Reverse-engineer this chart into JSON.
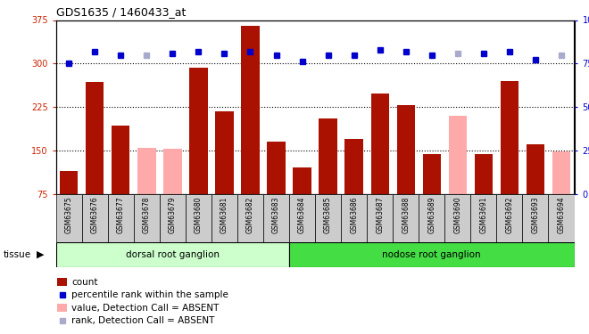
{
  "title": "GDS1635 / 1460433_at",
  "samples": [
    "GSM63675",
    "GSM63676",
    "GSM63677",
    "GSM63678",
    "GSM63679",
    "GSM63680",
    "GSM63681",
    "GSM63682",
    "GSM63683",
    "GSM63684",
    "GSM63685",
    "GSM63686",
    "GSM63687",
    "GSM63688",
    "GSM63689",
    "GSM63690",
    "GSM63691",
    "GSM63692",
    "GSM63693",
    "GSM63694"
  ],
  "bar_values": [
    115,
    268,
    193,
    null,
    null,
    292,
    218,
    365,
    165,
    120,
    205,
    170,
    248,
    228,
    143,
    null,
    143,
    270,
    160,
    null
  ],
  "bar_absent_values": [
    null,
    null,
    null,
    155,
    153,
    null,
    null,
    null,
    null,
    null,
    null,
    null,
    null,
    null,
    null,
    210,
    null,
    null,
    null,
    148
  ],
  "rank_values": [
    75,
    82,
    80,
    null,
    81,
    82,
    81,
    82,
    80,
    76,
    80,
    80,
    83,
    82,
    80,
    null,
    81,
    82,
    77,
    null
  ],
  "rank_absent_values": [
    null,
    null,
    null,
    80,
    null,
    null,
    null,
    null,
    null,
    null,
    null,
    null,
    null,
    null,
    null,
    81,
    null,
    null,
    null,
    80
  ],
  "tissue_groups": [
    {
      "label": "dorsal root ganglion",
      "start": 0,
      "end": 9
    },
    {
      "label": "nodose root ganglion",
      "start": 9,
      "end": 20
    }
  ],
  "ylim_left": [
    75,
    375
  ],
  "ylim_right": [
    0,
    100
  ],
  "yticks_left": [
    75,
    150,
    225,
    300,
    375
  ],
  "yticks_right": [
    0,
    25,
    50,
    75,
    100
  ],
  "bar_color": "#aa1100",
  "bar_absent_color": "#ffaaaa",
  "rank_color": "#0000cc",
  "rank_absent_color": "#aaaacc",
  "bg_color": "#e8e8e8",
  "plot_bg": "#ffffff",
  "tissue_color_dorsal": "#ccffcc",
  "tissue_color_nodose": "#44dd44",
  "xtick_bg": "#cccccc",
  "grid_dotted_levels": [
    150,
    225,
    300
  ]
}
